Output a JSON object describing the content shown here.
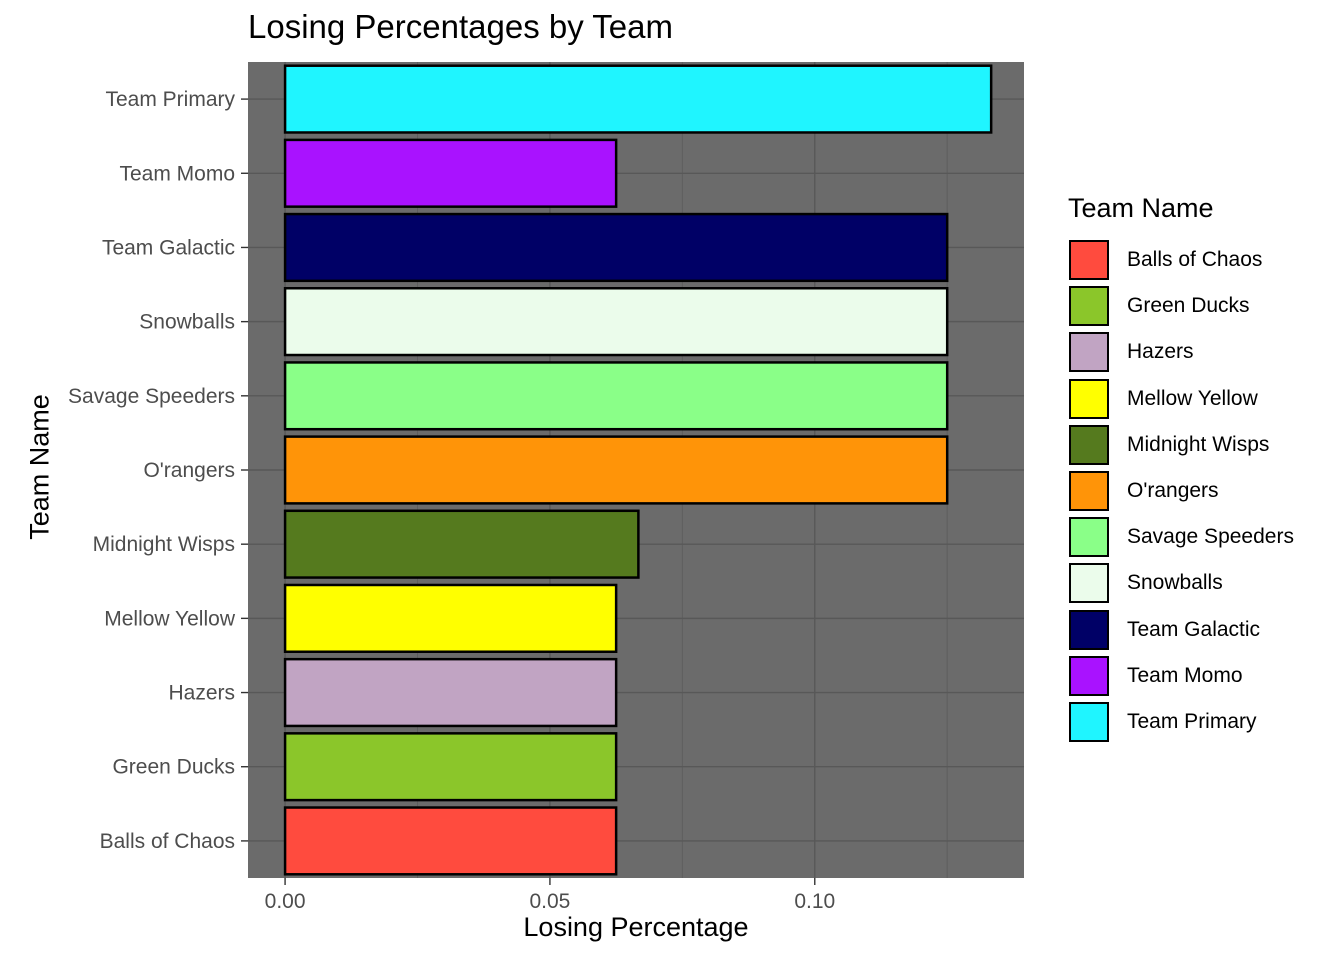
{
  "chart_data": {
    "type": "bar",
    "orientation": "horizontal",
    "title": "Losing Percentages by Team",
    "xlabel": "Losing Percentage",
    "ylabel": "Team Name",
    "categories": [
      "Balls of Chaos",
      "Green Ducks",
      "Hazers",
      "Mellow Yellow",
      "Midnight Wisps",
      "O'rangers",
      "Savage Speeders",
      "Snowballs",
      "Team Galactic",
      "Team Momo",
      "Team Primary"
    ],
    "values": [
      0.0625,
      0.0625,
      0.0625,
      0.0625,
      0.0667,
      0.125,
      0.125,
      0.125,
      0.125,
      0.0625,
      0.1333
    ],
    "colors": [
      "#FF4B3E",
      "#8BC62A",
      "#C1A4C3",
      "#FFFF00",
      "#557A1E",
      "#FF9408",
      "#8AFF88",
      "#EBFCEB",
      "#000066",
      "#A912FF",
      "#1FF5FF"
    ],
    "xlim": [
      -0.007,
      0.1395
    ],
    "x_ticks": [
      0.0,
      0.05,
      0.1
    ],
    "x_tick_labels": [
      "0.00",
      "0.05",
      "0.10"
    ],
    "grid": true,
    "panel_background": "#6B6B6B",
    "legend": {
      "title": "Team Name",
      "position": "right",
      "entries": [
        "Balls of Chaos",
        "Green Ducks",
        "Hazers",
        "Mellow Yellow",
        "Midnight Wisps",
        "O'rangers",
        "Savage Speeders",
        "Snowballs",
        "Team Galactic",
        "Team Momo",
        "Team Primary"
      ]
    }
  }
}
